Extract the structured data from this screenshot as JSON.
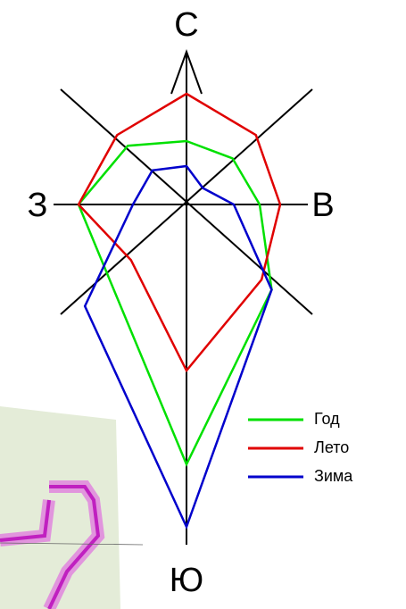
{
  "chart_data": {
    "type": "radar",
    "categories": [
      "С",
      null,
      "В",
      null,
      "Ю",
      null,
      "З",
      null
    ],
    "rlim": [
      0,
      400
    ],
    "series": [
      {
        "name": "Год",
        "color": "#00e000",
        "values": [
          71,
          73,
          82,
          135,
          291,
          121,
          121,
          93
        ]
      },
      {
        "name": "Лето",
        "color": "#e00000",
        "values": [
          124,
          110,
          105,
          119,
          186,
          88,
          121,
          110
        ]
      },
      {
        "name": "Зима",
        "color": "#0000cc",
        "values": [
          43,
          26,
          53,
          135,
          361,
          161,
          60,
          54
        ]
      }
    ]
  }
}
